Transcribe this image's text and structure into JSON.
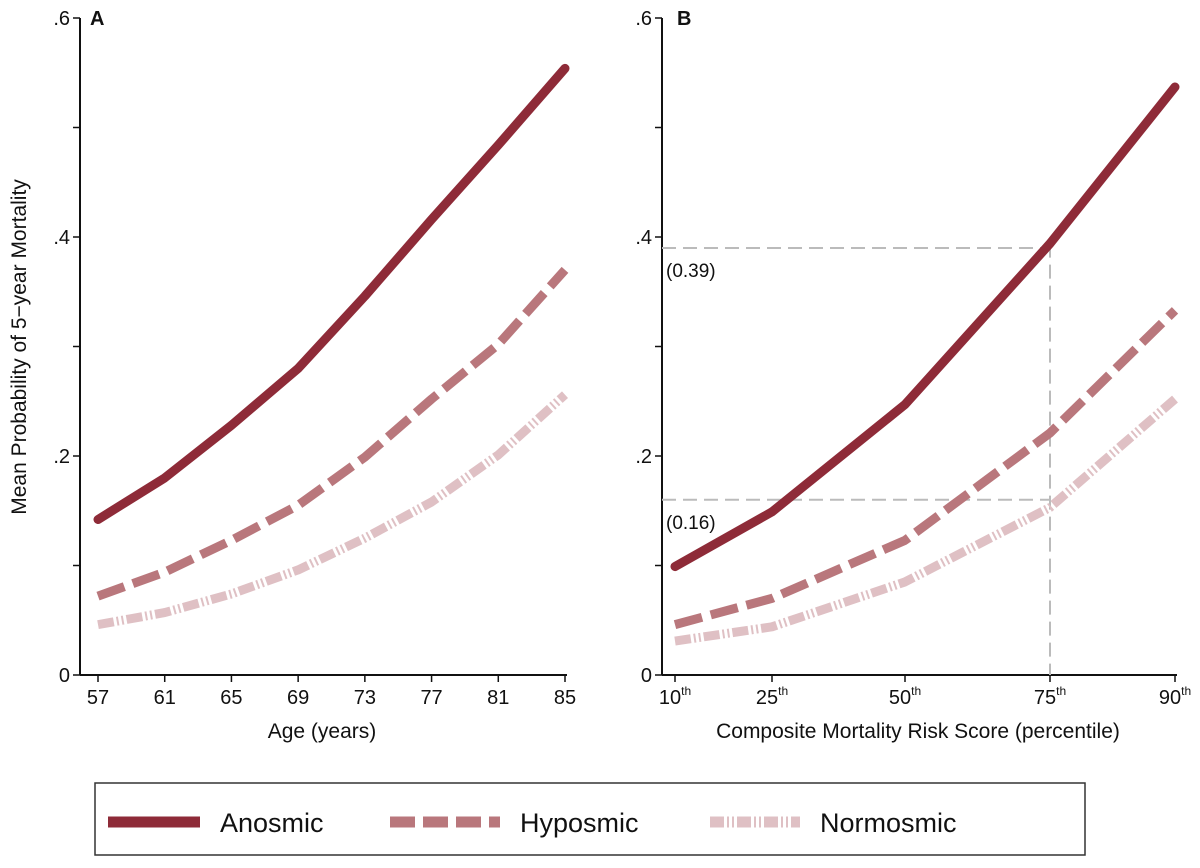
{
  "chart_data": [
    {
      "type": "line",
      "panel_label": "A",
      "xlabel": "Age (years)",
      "ylabel": "Mean Probability of 5−year Mortality",
      "x": [
        57,
        61,
        65,
        69,
        73,
        77,
        81,
        85
      ],
      "x_tick_labels": [
        "57",
        "61",
        "65",
        "69",
        "73",
        "77",
        "81",
        "85"
      ],
      "ylim": [
        0,
        0.6
      ],
      "y_ticks": [
        0,
        0.1,
        0.2,
        0.3,
        0.4,
        0.5,
        0.6
      ],
      "y_tick_labels": {
        "0": "0",
        "0.2": ".2",
        "0.4": ".4",
        "0.6": ".6"
      },
      "grid": false,
      "series": [
        {
          "name": "Anosmic",
          "values": [
            0.142,
            0.18,
            0.228,
            0.28,
            0.346,
            0.416,
            0.484,
            0.554
          ]
        },
        {
          "name": "Hyposmic",
          "values": [
            0.072,
            0.094,
            0.123,
            0.155,
            0.199,
            0.252,
            0.302,
            0.37
          ]
        },
        {
          "name": "Normosmic",
          "values": [
            0.046,
            0.057,
            0.074,
            0.096,
            0.125,
            0.158,
            0.201,
            0.256
          ]
        }
      ]
    },
    {
      "type": "line",
      "panel_label": "B",
      "xlabel": "Composite Mortality Risk Score (percentile)",
      "x": [
        10,
        25,
        50,
        75,
        90
      ],
      "x_tick_labels": [
        {
          "num": "10",
          "sup": "th"
        },
        {
          "num": "25",
          "sup": "th"
        },
        {
          "num": "50",
          "sup": "th"
        },
        {
          "num": "75",
          "sup": "th"
        },
        {
          "num": "90",
          "sup": "th"
        }
      ],
      "ylim": [
        0,
        0.6
      ],
      "y_ticks": [
        0,
        0.1,
        0.2,
        0.3,
        0.4,
        0.5,
        0.6
      ],
      "y_tick_labels": {
        "0": "0",
        "0.2": ".2",
        "0.4": ".4",
        "0.6": ".6"
      },
      "grid": false,
      "series": [
        {
          "name": "Anosmic",
          "values": [
            0.099,
            0.149,
            0.247,
            0.394,
            0.537
          ]
        },
        {
          "name": "Hyposmic",
          "values": [
            0.046,
            0.07,
            0.123,
            0.221,
            0.333
          ]
        },
        {
          "name": "Normosmic",
          "values": [
            0.031,
            0.044,
            0.085,
            0.153,
            0.252
          ]
        }
      ],
      "reference_lines": [
        {
          "y": 0.39,
          "label": "(0.39)"
        },
        {
          "y": 0.16,
          "label": "(0.16)"
        },
        {
          "x": 75
        }
      ]
    }
  ],
  "legend": {
    "placement": "bottom",
    "items": [
      {
        "label": "Anosmic",
        "style": "solid"
      },
      {
        "label": "Hyposmic",
        "style": "dash"
      },
      {
        "label": "Normosmic",
        "style": "dash-dot"
      }
    ]
  },
  "colors": {
    "Anosmic": "#8e2b38",
    "Hyposmic": "#b9777c",
    "Normosmic": "#dfc0c4",
    "reference": "#bbbbbb"
  }
}
